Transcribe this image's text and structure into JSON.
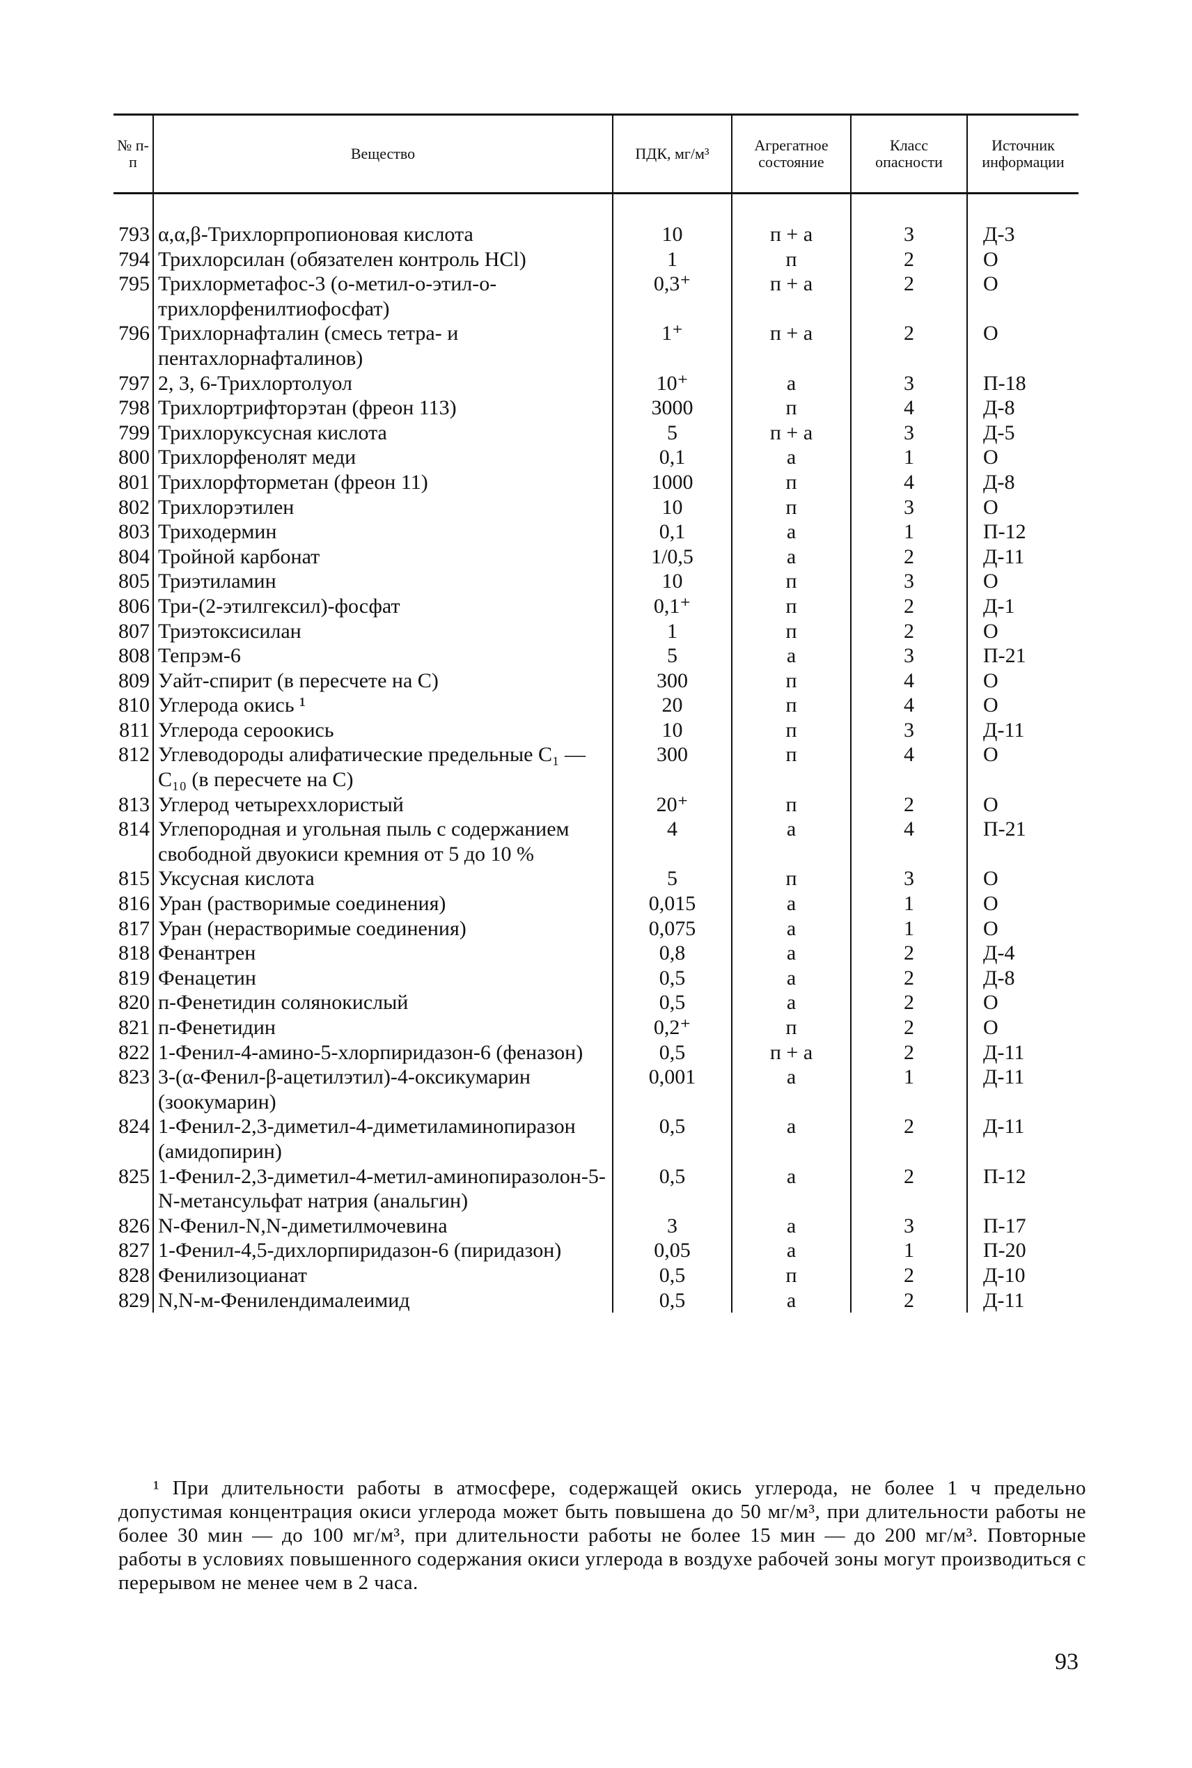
{
  "header": {
    "num": "№ п-п",
    "name": "Вещество",
    "pdk": "ПДК, мг/м³",
    "state": "Агрегатное состояние",
    "class": "Класс опасности",
    "source": "Источник информации"
  },
  "table": {
    "rows": [
      [
        "793",
        "α,α,β-Трихлорпропионовая кислота",
        "10",
        "п + а",
        "3",
        "Д-3"
      ],
      [
        "794",
        "Трихлорсилан (обязателен контроль HCl)",
        "1",
        "п",
        "2",
        "О"
      ],
      [
        "795",
        "Трихлорметафос-3 (о-метил-о-этил-о-трихлорфенилтиофосфат)",
        "0,3⁺",
        "п + а",
        "2",
        "О"
      ],
      [
        "796",
        "Трихлорнафталин (смесь тетра- и пентахлорнафталинов)",
        "1⁺",
        "п + а",
        "2",
        "О"
      ],
      [
        "797",
        "2, 3, 6-Трихлортолуол",
        "10⁺",
        "а",
        "3",
        "П-18"
      ],
      [
        "798",
        "Трихлортрифторэтан (фреон 113)",
        "3000",
        "п",
        "4",
        "Д-8"
      ],
      [
        "799",
        "Трихлоруксусная кислота",
        "5",
        "п + а",
        "3",
        "Д-5"
      ],
      [
        "800",
        "Трихлорфенолят меди",
        "0,1",
        "а",
        "1",
        "О"
      ],
      [
        "801",
        "Трихлорфторметан (фреон 11)",
        "1000",
        "п",
        "4",
        "Д-8"
      ],
      [
        "802",
        "Трихлорэтилен",
        "10",
        "п",
        "3",
        "О"
      ],
      [
        "803",
        "Триходермин",
        "0,1",
        "а",
        "1",
        "П-12"
      ],
      [
        "804",
        "Тройной карбонат",
        "1/0,5",
        "а",
        "2",
        "Д-11"
      ],
      [
        "805",
        "Триэтиламин",
        "10",
        "п",
        "3",
        "О"
      ],
      [
        "806",
        "Три-(2-этилгексил)-фосфат",
        "0,1⁺",
        "п",
        "2",
        "Д-1"
      ],
      [
        "807",
        "Триэтоксисилан",
        "1",
        "п",
        "2",
        "О"
      ],
      [
        "808",
        "Тепрэм-6",
        "5",
        "а",
        "3",
        "П-21"
      ],
      [
        "809",
        "Уайт-спирит (в пересчете на С)",
        "300",
        "п",
        "4",
        "О"
      ],
      [
        "810",
        "Углерода окись ¹",
        "20",
        "п",
        "4",
        "О"
      ],
      [
        "811",
        "Углерода сероокись",
        "10",
        "п",
        "3",
        "Д-11"
      ],
      [
        "812",
        "Углеводороды алифатические предельные C₁ — C₁₀ (в пересчете на С)",
        "300",
        "п",
        "4",
        "О"
      ],
      [
        "813",
        "Углерод четыреххлористый",
        "20⁺",
        "п",
        "2",
        "О"
      ],
      [
        "814",
        "Углепородная и угольная пыль с содержанием свободной двуокиси кремния от 5 до 10 %",
        "4",
        "а",
        "4",
        "П-21"
      ],
      [
        "815",
        "Уксусная кислота",
        "5",
        "п",
        "3",
        "О"
      ],
      [
        "816",
        "Уран (растворимые соединения)",
        "0,015",
        "а",
        "1",
        "О"
      ],
      [
        "817",
        "Уран (нерастворимые соединения)",
        "0,075",
        "а",
        "1",
        "О"
      ],
      [
        "818",
        "Фенантрен",
        "0,8",
        "а",
        "2",
        "Д-4"
      ],
      [
        "819",
        "Фенацетин",
        "0,5",
        "а",
        "2",
        "Д-8"
      ],
      [
        "820",
        "п-Фенетидин солянокислый",
        "0,5",
        "а",
        "2",
        "О"
      ],
      [
        "821",
        "п-Фенетидин",
        "0,2⁺",
        "п",
        "2",
        "О"
      ],
      [
        "822",
        "1-Фенил-4-амино-5-хлорпиридазон-6 (феназон)",
        "0,5",
        "п + а",
        "2",
        "Д-11"
      ],
      [
        "823",
        "3-(α-Фенил-β-ацетилэтил)-4-оксикумарин (зоокумарин)",
        "0,001",
        "а",
        "1",
        "Д-11"
      ],
      [
        "824",
        "1-Фенил-2,3-диметил-4-диметиламинопиразон (амидопирин)",
        "0,5",
        "а",
        "2",
        "Д-11"
      ],
      [
        "825",
        "1-Фенил-2,3-диметил-4-метил-аминопиразолон-5-N-метансульфат натрия (анальгин)",
        "0,5",
        "а",
        "2",
        "П-12"
      ],
      [
        "826",
        "N-Фенил-N,N-диметилмочевина",
        "3",
        "а",
        "3",
        "П-17"
      ],
      [
        "827",
        "1-Фенил-4,5-дихлорпиридазон-6 (пиридазон)",
        "0,05",
        "а",
        "1",
        "П-20"
      ],
      [
        "828",
        "Фенилизоцианат",
        "0,5",
        "п",
        "2",
        "Д-10"
      ],
      [
        "829",
        "N,N-м-Фенилендималеимид",
        "0,5",
        "а",
        "2",
        "Д-11"
      ]
    ]
  },
  "footnote": "¹ При длительности работы в атмосфере, содержащей окись углерода, не более 1 ч предельно допустимая концентрация окиси углерода может быть повышена до 50 мг/м³, при длительности работы не более 30 мин — до 100 мг/м³, при длительности работы не более 15 мин — до 200 мг/м³. Повторные работы в условиях повышенного содержания окиси углерода в воздухе рабочей зоны могут производиться с перерывом не менее чем в 2 часа.",
  "page_number": "93"
}
